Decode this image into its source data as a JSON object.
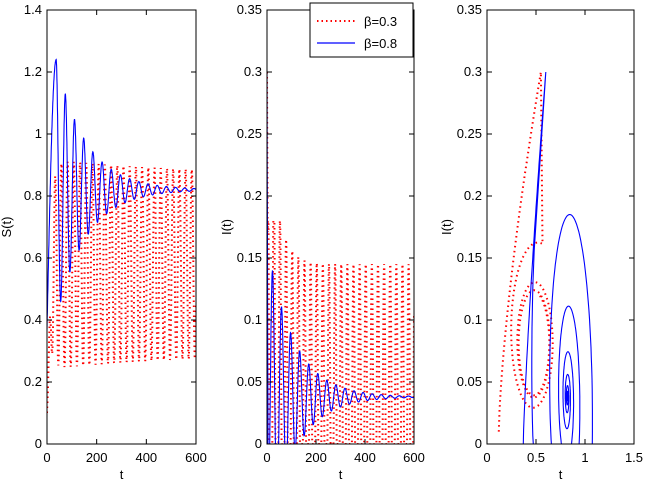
{
  "colors": {
    "beta_low": "#ff0000",
    "beta_high": "#0000ff",
    "axis": "#000000"
  },
  "legend": {
    "entries": [
      {
        "label": "β=0.3",
        "style": "dotted",
        "color": "#ff0000"
      },
      {
        "label": "β=0.8",
        "style": "solid",
        "color": "#0000ff"
      }
    ]
  },
  "chart_data": [
    {
      "type": "line",
      "id": "S",
      "xlabel": "t",
      "ylabel": "S(t)",
      "xlim": [
        0,
        600
      ],
      "ylim": [
        0,
        1.4
      ],
      "xticks": [
        0,
        200,
        400,
        600
      ],
      "yticks": [
        0,
        0.2,
        0.4,
        0.6,
        0.8,
        1,
        1.2,
        1.4
      ],
      "xtick_labels": [
        "0",
        "200",
        "400",
        "600"
      ],
      "ytick_labels": [
        "0",
        "0.2",
        "0.4",
        "0.6",
        "0.8",
        "1",
        "1.2",
        "1.4"
      ],
      "series": [
        {
          "name": "β=0.3",
          "start": 0.1,
          "mean": 0.58,
          "amp_final": 0.29,
          "amp_initial": 0.34,
          "period": 25,
          "decay": 500
        },
        {
          "name": "β=0.8",
          "start": 0.37,
          "peak": 1.24,
          "mean": 0.82,
          "amp_initial": 0.42,
          "period": 37,
          "decay": 120
        }
      ]
    },
    {
      "type": "line",
      "id": "I",
      "xlabel": "t",
      "ylabel": "I(t)",
      "xlim": [
        0,
        600
      ],
      "ylim": [
        0,
        0.35
      ],
      "xticks": [
        0,
        200,
        400,
        600
      ],
      "yticks": [
        0,
        0.05,
        0.1,
        0.15,
        0.2,
        0.25,
        0.3,
        0.35
      ],
      "xtick_labels": [
        "0",
        "200",
        "400",
        "600"
      ],
      "ytick_labels": [
        "0",
        "0.05",
        "0.1",
        "0.15",
        "0.2",
        "0.25",
        "0.3",
        "0.35"
      ],
      "series": [
        {
          "name": "β=0.3",
          "start": 0.3,
          "low": 0.0,
          "high": 0.145,
          "period": 25
        },
        {
          "name": "β=0.8",
          "start": 0.3,
          "mean": 0.038,
          "amp_initial": 0.12,
          "period": 37,
          "decay": 110
        }
      ]
    },
    {
      "type": "line",
      "id": "phase",
      "xlabel": "t",
      "ylabel": "I(t)",
      "xlim": [
        0,
        1.5
      ],
      "ylim": [
        0,
        0.35
      ],
      "xticks": [
        0,
        0.5,
        1,
        1.5
      ],
      "yticks": [
        0,
        0.05,
        0.1,
        0.15,
        0.2,
        0.25,
        0.3,
        0.35
      ],
      "xtick_labels": [
        "0",
        "0.5",
        "1",
        "1.5"
      ],
      "ytick_labels": [
        "0",
        "0.05",
        "0.1",
        "0.15",
        "0.2",
        "0.25",
        "0.3",
        "0.35"
      ],
      "series": [
        {
          "name": "β=0.3",
          "start": [
            0.1,
            0.0
          ],
          "peak": [
            0.55,
            0.3
          ],
          "cycle_center": [
            0.5,
            0.07
          ],
          "cycle_top": 0.145
        },
        {
          "name": "β=0.8",
          "start": [
            0.37,
            0.0
          ],
          "peak": [
            0.6,
            0.3
          ],
          "equilibrium": [
            0.82,
            0.038
          ]
        }
      ]
    }
  ]
}
